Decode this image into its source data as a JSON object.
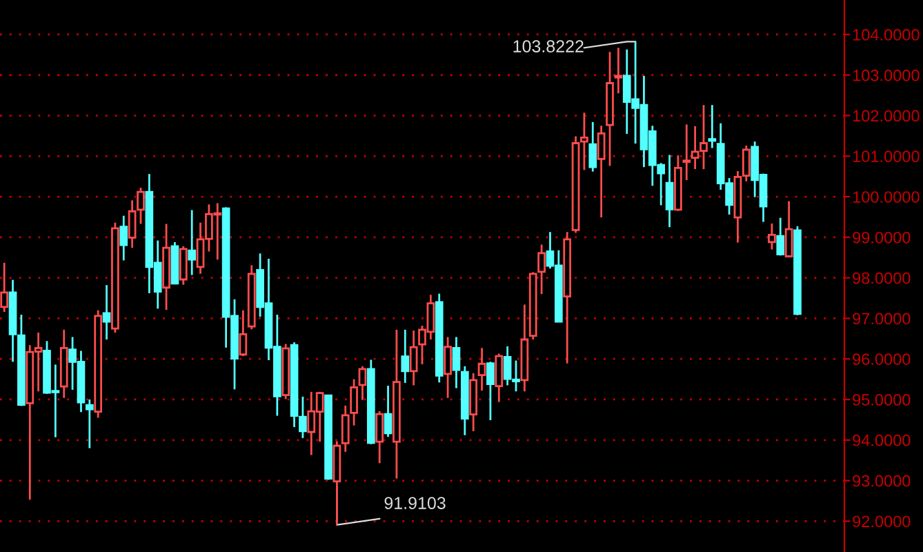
{
  "chart_data": {
    "type": "candlestick",
    "categories": [
      null,
      null,
      null,
      null,
      null,
      null,
      null,
      null,
      null,
      null,
      null,
      null,
      null,
      null,
      null,
      null,
      null,
      null,
      null,
      null,
      null,
      null,
      null,
      null,
      null,
      null,
      null,
      null,
      null,
      null,
      null,
      null,
      null,
      null,
      null,
      null,
      null,
      null,
      null,
      null,
      null,
      null,
      null,
      null,
      null,
      null,
      null,
      null,
      null,
      null,
      null,
      null,
      null,
      null,
      null,
      null,
      null,
      null,
      null,
      null,
      null,
      null,
      null,
      null,
      null,
      null,
      null,
      null,
      null,
      null,
      null,
      null,
      null,
      null,
      null,
      null,
      null,
      null,
      null,
      null,
      null,
      null,
      null,
      null,
      null,
      null,
      null,
      null,
      null,
      null,
      null,
      null,
      null,
      null
    ],
    "ohlc": [
      [
        97.28,
        98.37,
        97.16,
        97.64
      ],
      [
        97.64,
        97.95,
        95.93,
        96.61
      ],
      [
        96.58,
        97.09,
        94.84,
        94.87
      ],
      [
        94.91,
        96.34,
        92.53,
        96.17
      ],
      [
        96.18,
        96.65,
        95.2,
        96.27
      ],
      [
        96.2,
        96.44,
        95.14,
        95.17
      ],
      [
        95.21,
        95.86,
        94.07,
        95.18
      ],
      [
        95.32,
        96.72,
        95.04,
        96.27
      ],
      [
        96.23,
        96.54,
        95.24,
        95.93
      ],
      [
        95.93,
        96.2,
        94.69,
        94.93
      ],
      [
        94.86,
        95.0,
        93.8,
        94.76
      ],
      [
        94.7,
        97.2,
        94.55,
        97.06
      ],
      [
        97.13,
        97.82,
        96.48,
        96.92
      ],
      [
        96.75,
        99.36,
        96.65,
        99.22
      ],
      [
        99.26,
        99.53,
        98.43,
        98.81
      ],
      [
        98.99,
        99.91,
        98.74,
        99.64
      ],
      [
        99.68,
        100.22,
        99.33,
        100.12
      ],
      [
        100.12,
        100.56,
        97.62,
        98.27
      ],
      [
        98.37,
        98.92,
        97.24,
        97.66
      ],
      [
        97.76,
        99.33,
        97.21,
        98.74
      ],
      [
        98.78,
        98.88,
        97.84,
        97.86
      ],
      [
        97.96,
        98.78,
        97.83,
        98.71
      ],
      [
        98.67,
        99.67,
        98.07,
        98.45
      ],
      [
        98.27,
        99.36,
        98.1,
        98.95
      ],
      [
        98.96,
        99.81,
        98.65,
        99.57
      ],
      [
        99.56,
        99.84,
        98.45,
        99.57
      ],
      [
        99.71,
        99.74,
        96.28,
        97.04
      ],
      [
        97.06,
        97.47,
        95.25,
        96.01
      ],
      [
        96.11,
        97.2,
        96.07,
        96.61
      ],
      [
        96.8,
        98.31,
        96.73,
        98.1
      ],
      [
        98.19,
        98.6,
        97.04,
        97.28
      ],
      [
        97.37,
        98.47,
        95.97,
        96.28
      ],
      [
        96.3,
        97.09,
        94.6,
        95.08
      ],
      [
        95.11,
        96.37,
        95.01,
        96.26
      ],
      [
        96.34,
        96.41,
        94.32,
        94.6
      ],
      [
        94.57,
        95.07,
        94.05,
        94.22
      ],
      [
        94.2,
        95.19,
        93.63,
        94.71
      ],
      [
        94.7,
        95.19,
        93.96,
        95.16
      ],
      [
        95.1,
        95.1,
        93.02,
        93.05
      ],
      [
        92.98,
        93.97,
        91.9103,
        93.86
      ],
      [
        93.92,
        94.85,
        93.71,
        94.61
      ],
      [
        94.67,
        95.5,
        94.36,
        95.3
      ],
      [
        95.36,
        95.82,
        94.99,
        95.75
      ],
      [
        95.75,
        95.98,
        93.9,
        93.93
      ],
      [
        93.96,
        94.71,
        93.43,
        94.64
      ],
      [
        94.64,
        95.34,
        94.08,
        94.17
      ],
      [
        93.96,
        96.72,
        93.05,
        95.43
      ],
      [
        96.06,
        96.72,
        95.41,
        95.7
      ],
      [
        95.7,
        96.7,
        95.35,
        96.29
      ],
      [
        96.36,
        96.82,
        95.87,
        96.72
      ],
      [
        96.67,
        97.58,
        96.48,
        97.37
      ],
      [
        97.4,
        97.61,
        95.42,
        95.59
      ],
      [
        95.63,
        96.54,
        95.04,
        96.3
      ],
      [
        96.27,
        96.54,
        95.28,
        95.73
      ],
      [
        95.68,
        95.82,
        94.12,
        94.53
      ],
      [
        94.63,
        95.65,
        94.22,
        95.48
      ],
      [
        95.6,
        96.27,
        95.22,
        95.88
      ],
      [
        95.89,
        95.93,
        94.49,
        95.38
      ],
      [
        95.33,
        96.13,
        94.94,
        96.07
      ],
      [
        96.05,
        96.31,
        95.35,
        95.51
      ],
      [
        95.49,
        95.96,
        95.2,
        95.45
      ],
      [
        95.48,
        97.34,
        95.2,
        96.48
      ],
      [
        96.57,
        98.14,
        96.48,
        98.1
      ],
      [
        98.15,
        98.82,
        97.6,
        98.61
      ],
      [
        98.65,
        99.13,
        98.23,
        98.3
      ],
      [
        98.3,
        98.68,
        96.92,
        96.92
      ],
      [
        97.54,
        99.13,
        95.89,
        98.95
      ],
      [
        99.18,
        101.49,
        99.11,
        101.32
      ],
      [
        101.36,
        102.07,
        100.66,
        101.46
      ],
      [
        101.29,
        101.84,
        100.62,
        100.73
      ],
      [
        100.93,
        101.75,
        99.49,
        101.56
      ],
      [
        101.77,
        103.57,
        100.76,
        102.8
      ],
      [
        102.94,
        103.67,
        102.55,
        102.98
      ],
      [
        102.98,
        103.63,
        101.55,
        102.34
      ],
      [
        102.4,
        103.8222,
        101.31,
        102.19
      ],
      [
        102.26,
        102.98,
        100.73,
        101.17
      ],
      [
        101.61,
        101.75,
        100.27,
        100.78
      ],
      [
        100.78,
        100.83,
        99.79,
        100.58
      ],
      [
        100.34,
        101.03,
        99.25,
        99.69
      ],
      [
        99.68,
        101.02,
        99.65,
        100.71
      ],
      [
        100.86,
        101.78,
        100.41,
        100.87
      ],
      [
        100.96,
        101.74,
        100.68,
        101.11
      ],
      [
        101.13,
        102.26,
        100.68,
        101.32
      ],
      [
        101.42,
        102.26,
        101.2,
        101.38
      ],
      [
        101.3,
        101.81,
        100.17,
        100.33
      ],
      [
        100.33,
        100.46,
        99.56,
        99.8
      ],
      [
        99.49,
        100.63,
        98.87,
        100.49
      ],
      [
        100.52,
        101.26,
        100.38,
        101.16
      ],
      [
        101.23,
        101.36,
        99.99,
        100.41
      ],
      [
        100.54,
        100.57,
        99.38,
        99.76
      ],
      [
        98.88,
        99.34,
        98.7,
        99.06
      ],
      [
        99.03,
        99.48,
        98.55,
        98.58
      ],
      [
        98.53,
        99.89,
        98.53,
        99.2
      ],
      [
        99.17,
        99.27,
        97.08,
        97.11
      ]
    ],
    "colors": [
      "#ff4d4d",
      "#54ffff",
      "#54ffff",
      "#ff4d4d",
      "#ff4d4d",
      "#54ffff",
      "#54ffff",
      "#ff4d4d",
      "#54ffff",
      "#54ffff",
      "#54ffff",
      "#ff4d4d",
      "#54ffff",
      "#ff4d4d",
      "#54ffff",
      "#ff4d4d",
      "#ff4d4d",
      "#54ffff",
      "#54ffff",
      "#ff4d4d",
      "#54ffff",
      "#ff4d4d",
      "#54ffff",
      "#ff4d4d",
      "#ff4d4d",
      "#ff4d4d",
      "#54ffff",
      "#54ffff",
      "#ff4d4d",
      "#ff4d4d",
      "#54ffff",
      "#54ffff",
      "#54ffff",
      "#ff4d4d",
      "#54ffff",
      "#54ffff",
      "#ff4d4d",
      "#ff4d4d",
      "#54ffff",
      "#ff4d4d",
      "#ff4d4d",
      "#ff4d4d",
      "#ff4d4d",
      "#54ffff",
      "#ff4d4d",
      "#54ffff",
      "#ff4d4d",
      "#54ffff",
      "#ff4d4d",
      "#ff4d4d",
      "#ff4d4d",
      "#54ffff",
      "#ff4d4d",
      "#54ffff",
      "#54ffff",
      "#ff4d4d",
      "#ff4d4d",
      "#54ffff",
      "#ff4d4d",
      "#54ffff",
      "#54ffff",
      "#ff4d4d",
      "#ff4d4d",
      "#ff4d4d",
      "#54ffff",
      "#54ffff",
      "#ff4d4d",
      "#ff4d4d",
      "#ff4d4d",
      "#54ffff",
      "#ff4d4d",
      "#ff4d4d",
      "#ff4d4d",
      "#54ffff",
      "#54ffff",
      "#54ffff",
      "#54ffff",
      "#54ffff",
      "#54ffff",
      "#ff4d4d",
      "#ff4d4d",
      "#ff4d4d",
      "#ff4d4d",
      "#54ffff",
      "#54ffff",
      "#54ffff",
      "#ff4d4d",
      "#ff4d4d",
      "#54ffff",
      "#54ffff",
      "#ff4d4d",
      "#54ffff",
      "#ff4d4d",
      "#54ffff"
    ],
    "ylim": [
      91.24,
      104.85
    ],
    "yticks": [
      {
        "value": 92,
        "label": "92.0000"
      },
      {
        "value": 93,
        "label": "93.0000"
      },
      {
        "value": 94,
        "label": "94.0000"
      },
      {
        "value": 95,
        "label": "95.0000"
      },
      {
        "value": 96,
        "label": "96.0000"
      },
      {
        "value": 97,
        "label": "97.0000"
      },
      {
        "value": 98,
        "label": "98.0000"
      },
      {
        "value": 99,
        "label": "99.0000"
      },
      {
        "value": 100,
        "label": "100.0000"
      },
      {
        "value": 101,
        "label": "101.0000"
      },
      {
        "value": 102,
        "label": "102.0000"
      },
      {
        "value": 103,
        "label": "103.0000"
      },
      {
        "value": 104,
        "label": "104.0000"
      }
    ],
    "grid": "y",
    "tick_labels": "y",
    "annotations": [
      "103.8222",
      "91.9103"
    ]
  }
}
